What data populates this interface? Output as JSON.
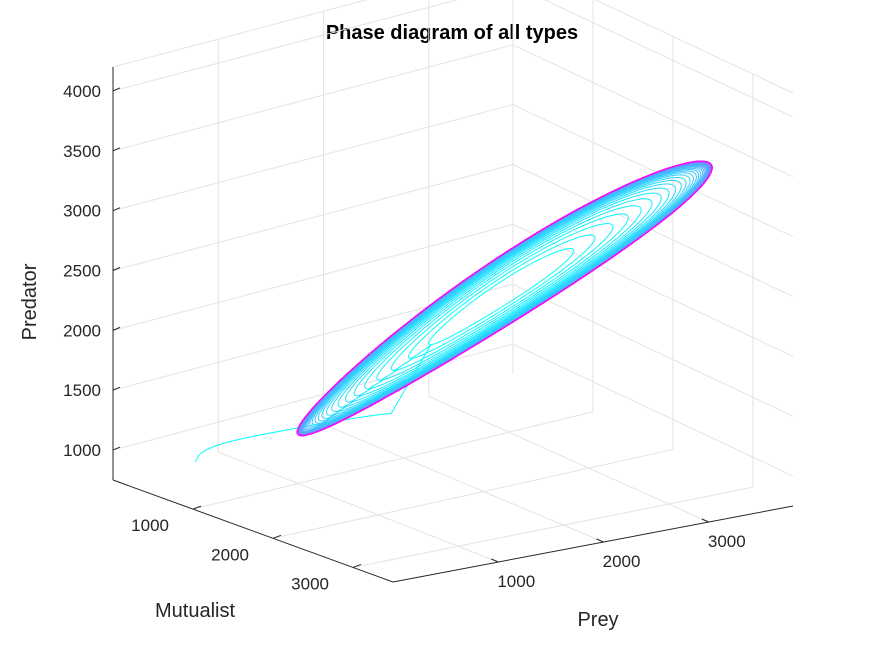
{
  "chart_data": {
    "type": "line",
    "projection": "3d",
    "title": "Phase diagram of all types",
    "xlabel": "Prey",
    "ylabel": "Mutualist",
    "zlabel": "Predator",
    "xlim": [
      0,
      3800
    ],
    "ylim": [
      0,
      3500
    ],
    "zlim": [
      750,
      4200
    ],
    "xticks": [
      "1000",
      "2000",
      "3000"
    ],
    "yticks": [
      "1000",
      "2000",
      "3000"
    ],
    "zticks": [
      "1000",
      "1500",
      "2000",
      "2500",
      "3000",
      "3500",
      "4000"
    ],
    "grid": true,
    "colormap": "cool",
    "colors": {
      "start": "#00ffff",
      "end": "#ff00ff",
      "axis": "#262626",
      "grid": "#e3e3e3"
    },
    "series": [
      {
        "description_of_trajectory": null,
        "start": {
          "prey": 100,
          "mutualist": 900,
          "predator": 1100
        },
        "limit_cycle": {
          "prey_center": 2150,
          "prey_amplitude": 1450,
          "mutualist_center": 2000,
          "mutualist_amplitude": 1200,
          "predator_center": 2350,
          "predator_amplitude": 1100
        },
        "revolutions": 60
      }
    ]
  }
}
